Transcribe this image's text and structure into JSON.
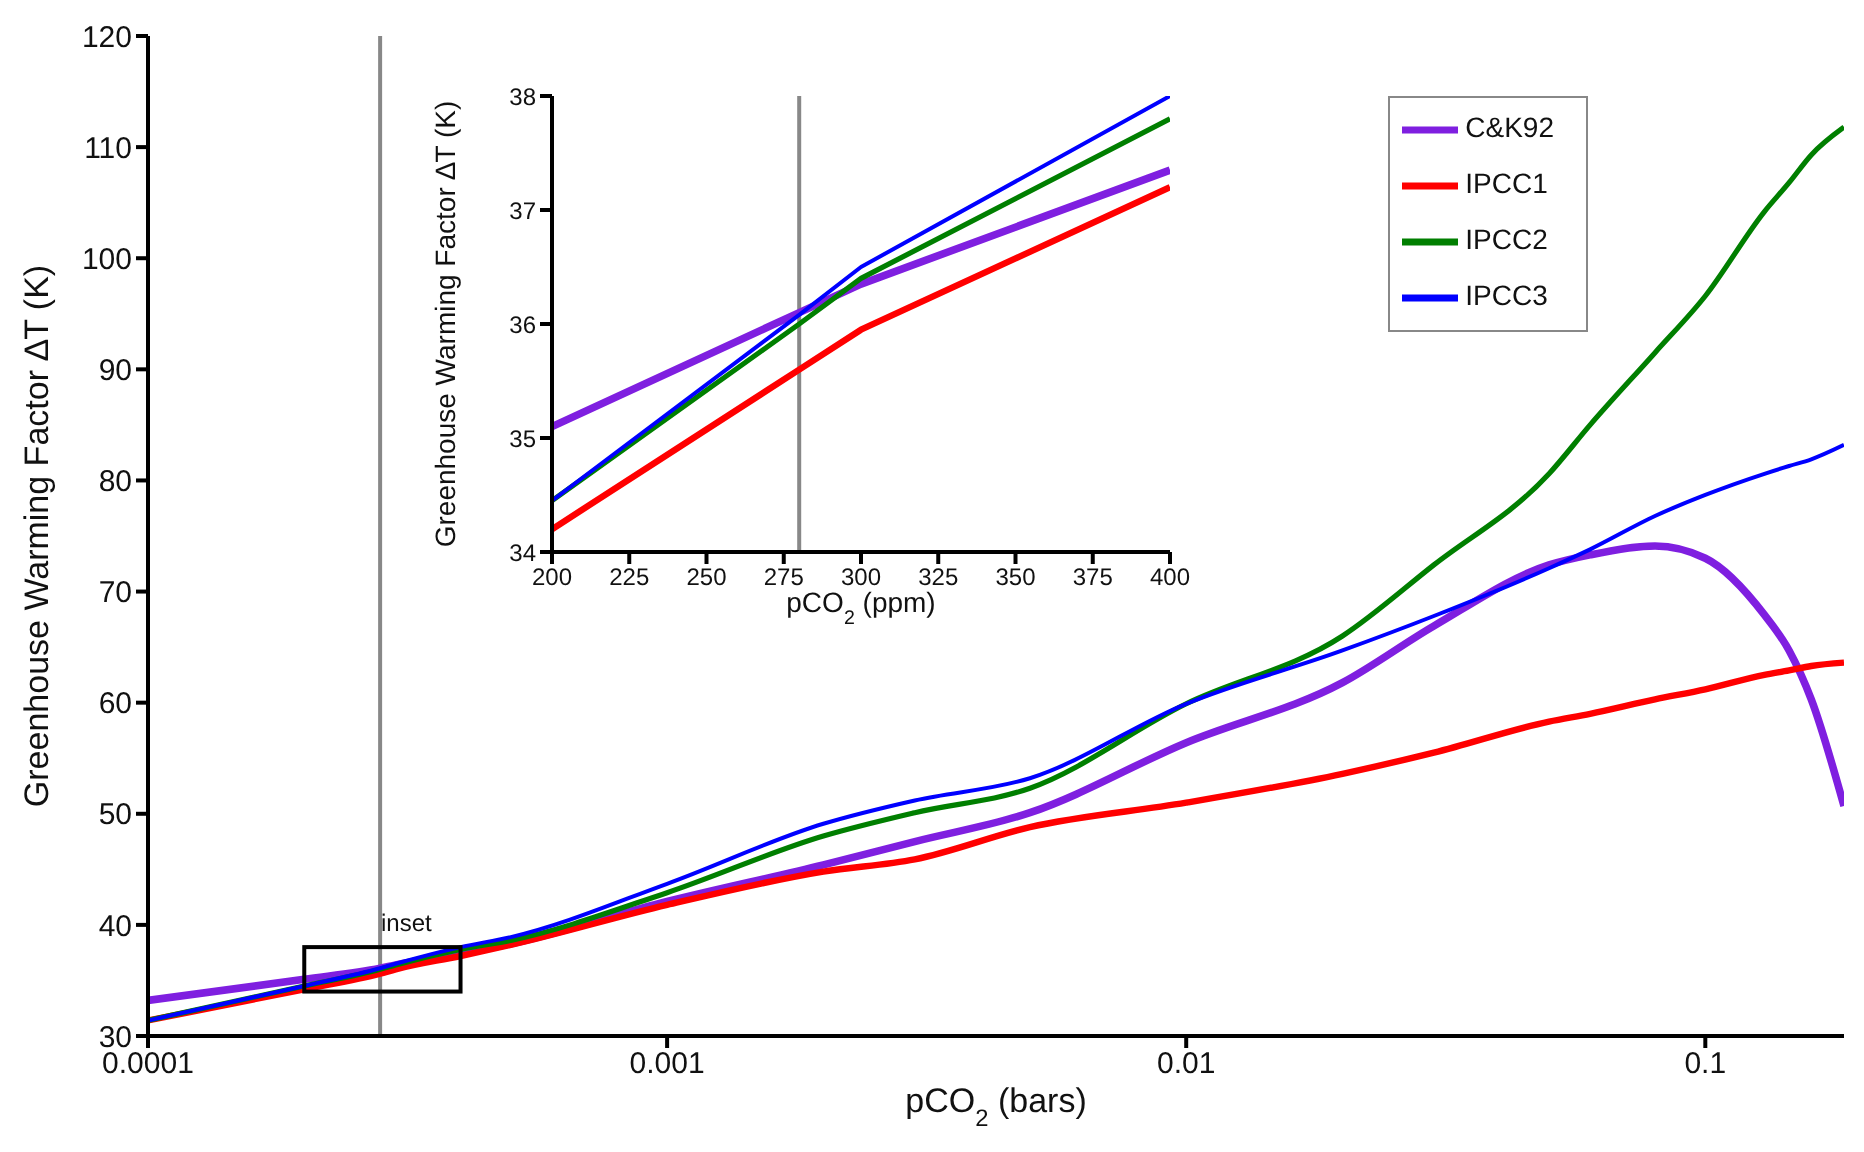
{
  "chart_data": [
    {
      "type": "line",
      "xlabel": "pCO$_{2}$ (bars)",
      "ylabel": "Greenhouse Warming Factor ∆T (K)",
      "log": "x",
      "xlim": [
        0.0001,
        0.185
      ],
      "xticks": [
        0.0001,
        0.001,
        0.01,
        0.1
      ],
      "ylim": [
        30,
        120
      ],
      "yticks": [
        30,
        40,
        50,
        60,
        70,
        80,
        90,
        100,
        110,
        120
      ],
      "legend": "top right",
      "annotations": [
        "inset"
      ],
      "ref_lines": [
        {
          "axis": "x",
          "value": 0.00028,
          "color": "#888888"
        }
      ],
      "x": [
        0.0001,
        0.0002,
        0.00028,
        0.0003,
        0.0004,
        0.0005,
        0.001,
        0.002,
        0.003,
        0.005,
        0.01,
        0.02,
        0.03,
        0.05,
        0.06,
        0.08,
        0.1,
        0.13,
        0.145,
        0.16,
        0.185
      ],
      "series": [
        {
          "name": "C&K92",
          "color": "#7f1fe0",
          "values": [
            33.2,
            35.1,
            36.1,
            36.4,
            37.4,
            38.3,
            42.1,
            45.4,
            47.5,
            50.1,
            56.4,
            61.8,
            66.9,
            72.4,
            73.3,
            74.1,
            73.0,
            67.9,
            64.7,
            60.3,
            50.7
          ]
        },
        {
          "name": "IPCC1",
          "color": "#ff0000",
          "values": [
            31.4,
            34.2,
            35.6,
            36.0,
            37.2,
            38.2,
            41.8,
            44.8,
            45.9,
            48.8,
            51.0,
            53.6,
            55.5,
            58.3,
            59.0,
            60.3,
            61.2,
            62.5,
            62.9,
            63.3,
            63.6
          ]
        },
        {
          "name": "IPCC2",
          "color": "#007f00",
          "values": [
            31.4,
            34.5,
            36.0,
            36.4,
            37.8,
            38.6,
            42.9,
            48.0,
            50.1,
            52.3,
            59.9,
            66.0,
            72.4,
            80.6,
            85.0,
            91.5,
            96.6,
            104.2,
            106.8,
            109.3,
            111.8
          ]
        },
        {
          "name": "IPCC3",
          "color": "#0000ff",
          "values": [
            31.4,
            34.5,
            36.1,
            36.5,
            38.0,
            38.9,
            43.7,
            49.1,
            51.2,
            53.2,
            59.9,
            64.7,
            67.8,
            72.1,
            73.8,
            76.8,
            78.7,
            80.6,
            81.3,
            81.9,
            83.2
          ]
        }
      ]
    },
    {
      "type": "line",
      "xlabel": "pCO$_{2}$ (ppm)",
      "ylabel": "Greenhouse Warming Factor ∆T (K)",
      "xlim": [
        200,
        400
      ],
      "xticks": [
        200,
        225,
        250,
        275,
        300,
        325,
        350,
        375,
        400
      ],
      "ylim": [
        34,
        38
      ],
      "yticks": [
        34,
        35,
        36,
        37,
        38
      ],
      "ref_lines": [
        {
          "axis": "x",
          "value": 280,
          "color": "#888888"
        }
      ],
      "x": [
        200,
        280,
        300,
        400
      ],
      "series": [
        {
          "color": "#7f1fe0",
          "values": [
            35.1,
            36.1,
            36.35,
            37.35
          ]
        },
        {
          "color": "#ff0000",
          "values": [
            34.2,
            35.6,
            35.95,
            37.2
          ]
        },
        {
          "color": "#007f00",
          "values": [
            34.45,
            36.0,
            36.4,
            37.8
          ]
        },
        {
          "color": "#0000ff",
          "values": [
            34.45,
            36.08,
            36.5,
            38.0
          ]
        }
      ]
    }
  ]
}
